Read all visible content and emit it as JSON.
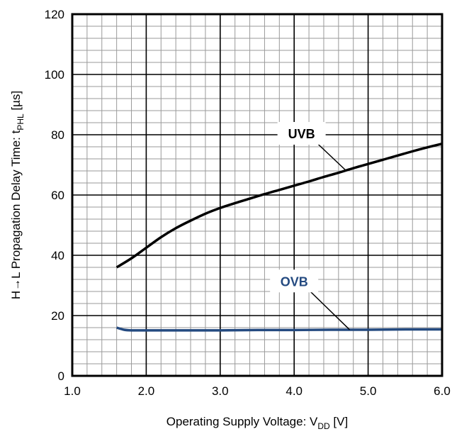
{
  "chart_data": {
    "type": "line",
    "title": "",
    "xlabel": {
      "prefix": "Operating Supply Voltage: V",
      "sub": "DD",
      "suffix": " [V]"
    },
    "ylabel": {
      "prefix": "H→L Propagation Delay Time: t",
      "sub": "PHL",
      "suffix": " [µs]"
    },
    "xlim": [
      1.0,
      6.0
    ],
    "ylim": [
      0,
      120
    ],
    "x_ticks": [
      "1.0",
      "2.0",
      "3.0",
      "4.0",
      "5.0",
      "6.0"
    ],
    "y_ticks": [
      "0",
      "20",
      "40",
      "60",
      "80",
      "100",
      "120"
    ],
    "grid": true,
    "series": [
      {
        "name": "UVB",
        "color": "#000000",
        "x": [
          1.6,
          1.8,
          2.0,
          2.2,
          2.4,
          2.6,
          2.8,
          3.0,
          3.2,
          3.4,
          3.6,
          3.8,
          4.0,
          4.2,
          4.4,
          4.6,
          4.8,
          5.0,
          5.2,
          5.4,
          5.6,
          5.8,
          6.0
        ],
        "y": [
          36,
          39,
          42.5,
          46,
          49,
          51.5,
          53.8,
          55.7,
          57.3,
          58.8,
          60.3,
          61.7,
          63.1,
          64.5,
          66,
          67.4,
          68.9,
          70.3,
          71.7,
          73.1,
          74.5,
          75.8,
          77
        ]
      },
      {
        "name": "OVB",
        "color": "#244a80",
        "x": [
          1.6,
          1.7,
          1.8,
          2.0,
          2.5,
          3.0,
          3.5,
          4.0,
          4.5,
          5.0,
          5.5,
          6.0
        ],
        "y": [
          16,
          15.3,
          15.1,
          15.1,
          15.1,
          15.1,
          15.2,
          15.2,
          15.3,
          15.3,
          15.4,
          15.4
        ]
      }
    ],
    "annotations": [
      {
        "text": "UVB",
        "series": "UVB",
        "at_x": 4.7,
        "label_at": [
          4.1,
          80
        ],
        "color": "#000000"
      },
      {
        "text": "OVB",
        "series": "OVB",
        "at_x": 4.75,
        "label_at": [
          4.0,
          31
        ],
        "color": "#244a80"
      }
    ]
  }
}
